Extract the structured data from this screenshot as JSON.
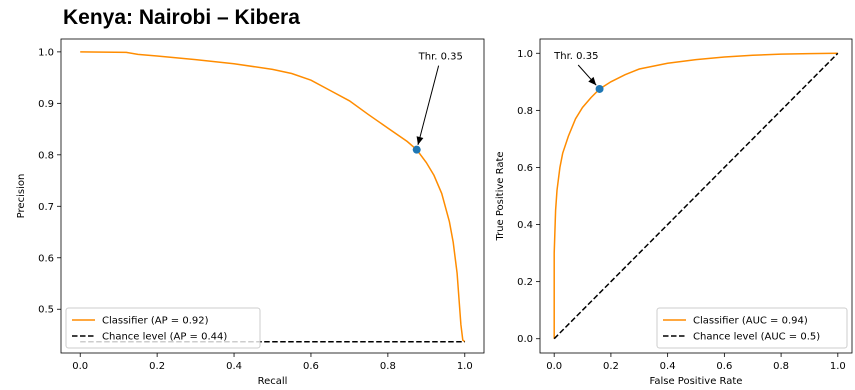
{
  "title": "Kenya: Nairobi – Kibera",
  "colors": {
    "classifier": "#ff8c00",
    "chance": "#000000",
    "threshold": "#1f77b4"
  },
  "chart_data": [
    {
      "type": "line",
      "name": "pr",
      "xlabel": "Recall",
      "ylabel": "Precision",
      "xlim": [
        -0.05,
        1.05
      ],
      "ylim": [
        0.415,
        1.025
      ],
      "xticks": [
        0.0,
        0.2,
        0.4,
        0.6,
        0.8,
        1.0
      ],
      "yticks": [
        0.5,
        0.6,
        0.7,
        0.8,
        0.9,
        1.0
      ],
      "grid": false,
      "legend_position": "lower-left",
      "series": [
        {
          "name": "Classifier (AP = 0.92)",
          "style": "solid",
          "x": [
            0.0,
            0.12,
            0.15,
            0.2,
            0.3,
            0.4,
            0.5,
            0.55,
            0.6,
            0.65,
            0.7,
            0.75,
            0.8,
            0.85,
            0.875,
            0.9,
            0.92,
            0.94,
            0.96,
            0.97,
            0.98,
            0.985,
            0.99,
            0.995,
            1.0
          ],
          "y": [
            1.0,
            0.999,
            0.995,
            0.992,
            0.985,
            0.977,
            0.966,
            0.958,
            0.945,
            0.925,
            0.905,
            0.878,
            0.852,
            0.826,
            0.81,
            0.785,
            0.76,
            0.725,
            0.67,
            0.63,
            0.57,
            0.52,
            0.47,
            0.44,
            0.437
          ]
        },
        {
          "name": "Chance level (AP = 0.44)",
          "style": "dashed",
          "x": [
            0.0,
            1.0
          ],
          "y": [
            0.437,
            0.437
          ]
        }
      ],
      "annotation": {
        "text": "Thr. 0.35",
        "point": [
          0.875,
          0.81
        ],
        "text_at": [
          0.88,
          0.985
        ]
      }
    },
    {
      "type": "line",
      "name": "roc",
      "xlabel": "False Positive Rate",
      "ylabel": "True Positive Rate",
      "xlim": [
        -0.05,
        1.05
      ],
      "ylim": [
        -0.05,
        1.05
      ],
      "xticks": [
        0.0,
        0.2,
        0.4,
        0.6,
        0.8,
        1.0
      ],
      "yticks": [
        0.0,
        0.2,
        0.4,
        0.6,
        0.8,
        1.0
      ],
      "grid": false,
      "legend_position": "lower-right",
      "series": [
        {
          "name": "Classifier (AUC = 0.94)",
          "style": "solid",
          "x": [
            0.0,
            0.0,
            0.005,
            0.01,
            0.02,
            0.03,
            0.05,
            0.075,
            0.1,
            0.13,
            0.16,
            0.2,
            0.25,
            0.3,
            0.4,
            0.5,
            0.6,
            0.7,
            0.8,
            0.9,
            1.0
          ],
          "y": [
            0.0,
            0.3,
            0.45,
            0.52,
            0.6,
            0.65,
            0.71,
            0.77,
            0.81,
            0.845,
            0.875,
            0.9,
            0.925,
            0.945,
            0.965,
            0.978,
            0.987,
            0.993,
            0.997,
            0.999,
            1.0
          ]
        },
        {
          "name": "Chance level (AUC = 0.5)",
          "style": "dashed",
          "x": [
            0.0,
            1.0
          ],
          "y": [
            0.0,
            1.0
          ]
        }
      ],
      "annotation": {
        "text": "Thr. 0.35",
        "point": [
          0.16,
          0.875
        ],
        "text_at": [
          0.0,
          0.98
        ]
      }
    }
  ]
}
